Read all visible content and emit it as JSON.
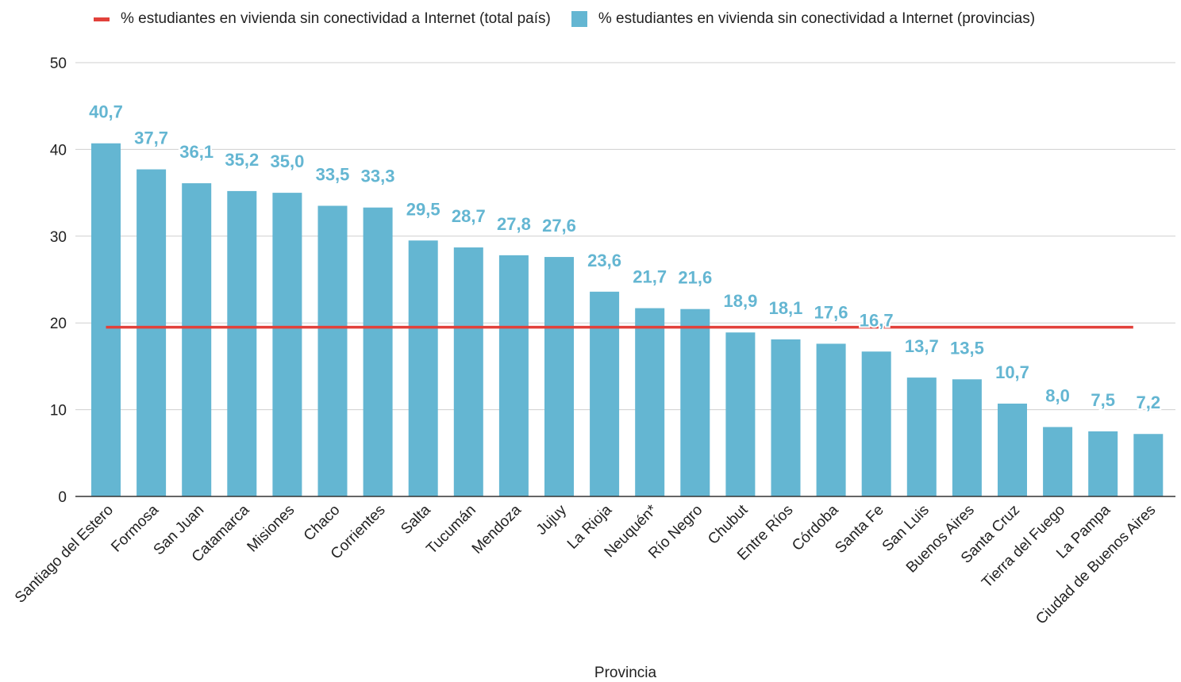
{
  "chart_data": {
    "type": "bar",
    "title": "",
    "xlabel": "Provincia",
    "ylabel": "",
    "ylim": [
      0,
      50
    ],
    "yticks": [
      0,
      10,
      20,
      30,
      40,
      50
    ],
    "grid": true,
    "legend_position": "top",
    "categories": [
      "Santiago del Estero",
      "Formosa",
      "San Juan",
      "Catamarca",
      "Misiones",
      "Chaco",
      "Corrientes",
      "Salta",
      "Tucumán",
      "Mendoza",
      "Jujuy",
      "La Rioja",
      "Neuquén*",
      "Río Negro",
      "Chubut",
      "Entre Ríos",
      "Córdoba",
      "Santa Fe",
      "San Luis",
      "Buenos Aires",
      "Santa Cruz",
      "Tierra del Fuego",
      "La Pampa",
      "Ciudad de Buenos Aires"
    ],
    "series": [
      {
        "name": "% estudiantes en vivienda sin conectividad a Internet (provincias)",
        "kind": "bar",
        "color": "#64b6d2",
        "values": [
          40.7,
          37.7,
          36.1,
          35.2,
          35.0,
          33.5,
          33.3,
          29.5,
          28.7,
          27.8,
          27.6,
          23.6,
          21.7,
          21.6,
          18.9,
          18.1,
          17.6,
          16.7,
          13.7,
          13.5,
          10.7,
          8.0,
          7.5,
          7.2
        ],
        "labels": [
          "40,7",
          "37,7",
          "36,1",
          "35,2",
          "35,0",
          "33,5",
          "33,3",
          "29,5",
          "28,7",
          "27,8",
          "27,6",
          "23,6",
          "21,7",
          "21,6",
          "18,9",
          "18,1",
          "17,6",
          "16,7",
          "13,7",
          "13,5",
          "10,7",
          "8,0",
          "7,5",
          "7,2"
        ]
      },
      {
        "name": "% estudiantes en vivienda sin conectividad a Internet (total país)",
        "kind": "line",
        "color": "#e2413b",
        "value": 19.5
      }
    ]
  }
}
